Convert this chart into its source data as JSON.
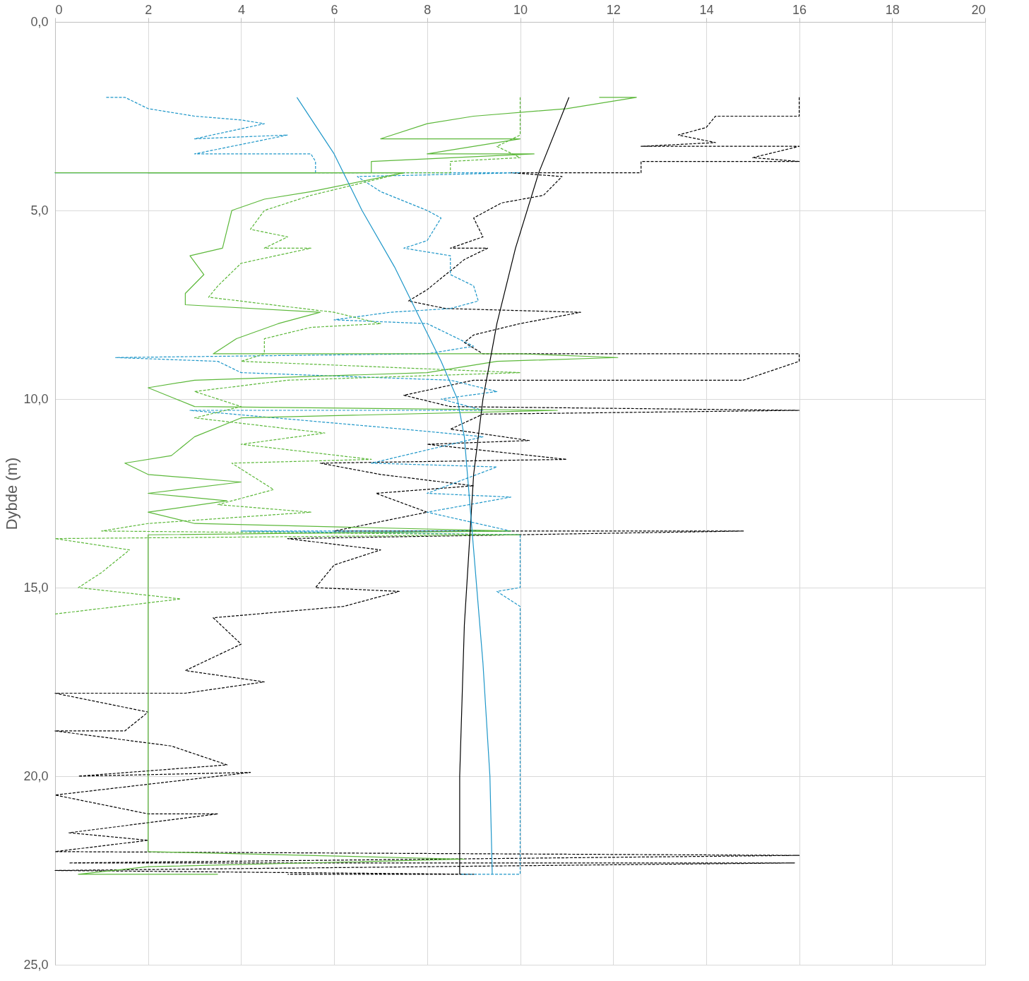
{
  "chart_data": {
    "type": "line",
    "ylabel": "Dybde (m)",
    "xlim": [
      0,
      20
    ],
    "xticks": [
      0,
      2,
      4,
      6,
      8,
      10,
      12,
      14,
      16,
      18,
      20
    ],
    "ylim": [
      25,
      0
    ],
    "yticks": [
      {
        "value": 0,
        "label": "0,0"
      },
      {
        "value": 5,
        "label": "5,0"
      },
      {
        "value": 10,
        "label": "10,0"
      },
      {
        "value": 15,
        "label": "15,0"
      },
      {
        "value": 20,
        "label": "20,0"
      },
      {
        "value": 25,
        "label": "25,0"
      }
    ],
    "grid": true,
    "marker": "none",
    "series": [
      {
        "color": "#000000",
        "line_style": "dashed",
        "x": [
          16,
          16,
          14.2,
          14,
          13.4,
          14.2,
          12.6,
          16,
          15,
          16,
          12.6,
          12.6,
          9.8,
          10.9,
          10.5,
          9.6,
          9.3,
          9.0,
          9.2,
          8.5,
          9.3,
          8.8,
          8.5,
          8.0,
          7.6,
          8.4,
          11.3,
          10.0,
          9.0,
          8.8,
          9.2,
          16,
          16,
          14.8,
          9.0,
          7.5,
          8.5,
          16,
          9.2,
          8.5,
          10.2,
          8.0,
          11.0,
          5.7,
          7.0,
          9.0,
          6.9,
          8.0,
          6.0,
          14.8,
          5.0,
          7.0,
          6.0,
          5.6,
          7.4,
          6.2,
          3.4,
          4.0,
          2.8,
          4.5,
          2.8,
          0,
          2.0,
          1.5,
          0,
          2.5,
          3.7,
          0.5,
          4.2,
          0,
          2.0,
          3.5,
          0.3,
          2.0,
          0,
          16,
          0.3,
          15.9,
          0,
          9.0,
          5.0
        ],
        "values": [
          2.0,
          2.5,
          2.5,
          2.8,
          3.0,
          3.2,
          3.3,
          3.3,
          3.6,
          3.7,
          3.7,
          4.0,
          4.0,
          4.1,
          4.6,
          4.8,
          5.0,
          5.2,
          5.7,
          6.0,
          6.0,
          6.3,
          6.6,
          7.1,
          7.4,
          7.6,
          7.7,
          8.0,
          8.3,
          8.5,
          8.8,
          8.8,
          9.0,
          9.5,
          9.5,
          9.9,
          10.2,
          10.3,
          10.4,
          10.8,
          11.1,
          11.2,
          11.6,
          11.7,
          12.0,
          12.3,
          12.5,
          13.0,
          13.5,
          13.5,
          13.7,
          14.0,
          14.4,
          15.0,
          15.1,
          15.5,
          15.8,
          16.5,
          17.2,
          17.5,
          17.8,
          17.8,
          18.3,
          18.8,
          18.8,
          19.2,
          19.7,
          20.0,
          19.9,
          20.5,
          21.0,
          21.0,
          21.5,
          21.7,
          22.0,
          22.1,
          22.3,
          22.3,
          22.5,
          22.6,
          22.6
        ]
      },
      {
        "color": "#1f97c9",
        "line_style": "dashed",
        "x": [
          1.1,
          1.5,
          2.0,
          3.0,
          4.0,
          4.5,
          3.0,
          5.0,
          3.0,
          5.5,
          5.6,
          5.6,
          0,
          10,
          6.5,
          7.0,
          8.0,
          8.3,
          8.0,
          7.5,
          8.5,
          8.5,
          9.0,
          9.1,
          8.5,
          7.2,
          6.0,
          8.0,
          9.0,
          8.0,
          1.3,
          3.5,
          4.0,
          8.5,
          9.5,
          8.3,
          9.2,
          2.9,
          7.5,
          9.2,
          6.8,
          9.5,
          8.0,
          9.8,
          8.0,
          9.8,
          4.0,
          10,
          10,
          9.5,
          10,
          10,
          8.7
        ],
        "values": [
          2.0,
          2.0,
          2.3,
          2.5,
          2.6,
          2.7,
          3.1,
          3.0,
          3.5,
          3.5,
          3.7,
          4.0,
          4.0,
          4.0,
          4.1,
          4.5,
          5.0,
          5.2,
          5.8,
          6.0,
          6.2,
          6.7,
          7.0,
          7.4,
          7.6,
          7.7,
          7.9,
          8.0,
          8.6,
          8.8,
          8.9,
          9.0,
          9.3,
          9.5,
          9.8,
          10.0,
          10.3,
          10.3,
          10.8,
          11.0,
          11.7,
          11.8,
          12.5,
          12.6,
          13.0,
          13.5,
          13.5,
          13.6,
          15.0,
          15.1,
          15.5,
          22.6,
          22.6
        ]
      },
      {
        "color": "#5cb83a",
        "line_style": "dashed",
        "x": [
          10,
          10,
          9.5,
          10,
          8.5,
          8.5,
          0,
          7.5,
          6.5,
          5.5,
          4.5,
          4.2,
          5.0,
          4.5,
          5.5,
          4.0,
          3.5,
          3.3,
          6.0,
          7.0,
          5.5,
          4.5,
          4.5,
          4.0,
          10,
          5.0,
          3.0,
          4.0,
          3.0,
          5.8,
          4.0,
          6.8,
          3.8,
          4.7,
          3.5,
          5.5,
          2.0,
          1.0,
          10,
          0,
          1.6,
          1.0,
          0.5,
          2.7,
          0
        ],
        "values": [
          2.0,
          3.0,
          3.3,
          3.6,
          3.7,
          4.0,
          4.0,
          4.0,
          4.3,
          4.6,
          5.0,
          5.5,
          5.7,
          6.0,
          6.0,
          6.4,
          7.0,
          7.3,
          7.7,
          8.0,
          8.1,
          8.4,
          8.8,
          9.0,
          9.3,
          9.5,
          9.8,
          10.2,
          10.5,
          10.9,
          11.2,
          11.6,
          11.7,
          12.4,
          12.8,
          13.0,
          13.3,
          13.5,
          13.6,
          13.7,
          14.0,
          14.6,
          15.0,
          15.3,
          15.7
        ]
      },
      {
        "color": "#5cb83a",
        "line_style": "solid",
        "x": [
          11.7,
          12.5,
          11.0,
          9.0,
          8.0,
          7.0,
          10,
          8.0,
          10.3,
          6.8,
          6.8,
          2.0,
          7.5,
          5.5,
          4.5,
          3.8,
          3.7,
          3.6,
          2.9,
          3.2,
          2.8,
          2.8,
          5.7,
          4.8,
          3.9,
          3.4,
          10,
          12.1,
          9.5,
          8.0,
          3.0,
          2.0,
          2.6,
          3.0,
          10.8,
          4.0,
          3.0,
          2.5,
          1.5,
          2.0,
          4.0,
          2.0,
          3.7,
          2.0,
          3.0,
          9.8,
          2.0,
          2.0,
          8.8,
          2.0,
          0.5,
          3.5
        ],
        "values": [
          2.0,
          2.0,
          2.3,
          2.5,
          2.7,
          3.1,
          3.1,
          3.5,
          3.5,
          3.7,
          4.0,
          4.0,
          4.0,
          4.5,
          4.7,
          5.0,
          5.5,
          6.0,
          6.2,
          6.7,
          7.2,
          7.5,
          7.7,
          8.0,
          8.4,
          8.8,
          8.8,
          8.9,
          9.0,
          9.3,
          9.5,
          9.7,
          10.0,
          10.2,
          10.3,
          10.5,
          11.0,
          11.5,
          11.7,
          12.0,
          12.2,
          12.5,
          12.7,
          13.0,
          13.3,
          13.5,
          13.6,
          22.0,
          22.2,
          22.4,
          22.6,
          22.6
        ]
      },
      {
        "color": "#000000",
        "line_style": "solid",
        "x": [
          11.05,
          10.4,
          9.9,
          9.5,
          9.2,
          9.0,
          8.9,
          8.8,
          8.75,
          8.7,
          8.7
        ],
        "values": [
          2.0,
          4.0,
          6.0,
          8.0,
          10.0,
          12.0,
          14.0,
          16.0,
          18.0,
          20.0,
          22.6
        ]
      },
      {
        "color": "#1f97c9",
        "line_style": "solid",
        "x": [
          5.2,
          6.0,
          6.6,
          7.3,
          7.9,
          8.3,
          8.65,
          8.8,
          8.9,
          9.0,
          9.2,
          9.35,
          9.4
        ],
        "values": [
          2.0,
          3.5,
          5.0,
          6.5,
          8.0,
          9.0,
          10.0,
          11.0,
          12.5,
          14.0,
          17.0,
          20.0,
          22.6
        ]
      }
    ]
  }
}
